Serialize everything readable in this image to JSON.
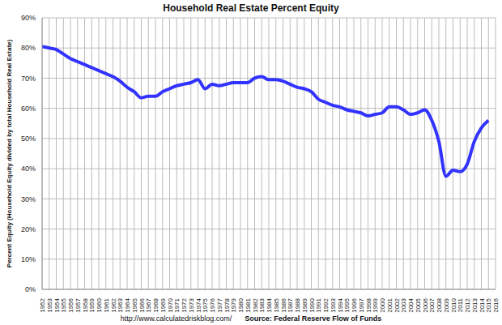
{
  "chart_data": {
    "type": "line",
    "title": "Household Real Estate Percent Equity",
    "y_label": "Percent Equity (Household Equity divided by total Household Real Estate)",
    "annotations": [
      "http://www.calculatedriskblog.com/",
      "Source: Federal Reserve Flow of Funds"
    ],
    "x": [
      1952,
      1953,
      1954,
      1955,
      1956,
      1957,
      1958,
      1959,
      1960,
      1961,
      1962,
      1963,
      1964,
      1965,
      1966,
      1967,
      1968,
      1969,
      1970,
      1971,
      1972,
      1973,
      1974,
      1975,
      1976,
      1977,
      1978,
      1979,
      1980,
      1981,
      1982,
      1983,
      1984,
      1985,
      1986,
      1987,
      1988,
      1989,
      1990,
      1991,
      1992,
      1993,
      1994,
      1995,
      1996,
      1997,
      1998,
      1999,
      2000,
      2001,
      2002,
      2003,
      2004,
      2005,
      2006,
      2007,
      2008,
      2009,
      2010,
      2011,
      2012,
      2013,
      2014,
      2015
    ],
    "series": [
      {
        "name": "Household Real Estate Percent Equity",
        "color": "#3333ff",
        "marker": "none",
        "line_style": "solid",
        "values": [
          80.5,
          80,
          79.5,
          78,
          76.5,
          75.5,
          74.5,
          73.5,
          72.5,
          71.5,
          70.5,
          69,
          67,
          65.5,
          63.5,
          64,
          64,
          65.5,
          66.5,
          67.5,
          68,
          68.5,
          69.5,
          66.5,
          68,
          67.5,
          68,
          68.5,
          68.5,
          68.5,
          70,
          70.5,
          69.5,
          69.5,
          69,
          68,
          67,
          66.5,
          65.5,
          63,
          62,
          61,
          60.5,
          59.5,
          59,
          58.5,
          57.5,
          58,
          58.5,
          60.5,
          60.5,
          59.5,
          58,
          58.5,
          59.5,
          56,
          49,
          37.5,
          39.5,
          39,
          41.5,
          49,
          53.5,
          56
        ]
      }
    ],
    "xlim": [
      1952,
      2016
    ],
    "xticks": [
      1952,
      1953,
      1954,
      1955,
      1956,
      1957,
      1958,
      1959,
      1960,
      1961,
      1962,
      1963,
      1964,
      1965,
      1966,
      1967,
      1968,
      1969,
      1970,
      1971,
      1972,
      1973,
      1974,
      1975,
      1976,
      1977,
      1978,
      1979,
      1980,
      1981,
      1982,
      1983,
      1984,
      1985,
      1986,
      1987,
      1988,
      1989,
      1990,
      1991,
      1992,
      1993,
      1994,
      1995,
      1996,
      1997,
      1998,
      1999,
      2000,
      2001,
      2002,
      2003,
      2004,
      2005,
      2006,
      2007,
      2008,
      2009,
      2010,
      2011,
      2012,
      2013,
      2014,
      2015,
      2016
    ],
    "ylim": [
      0,
      90
    ],
    "yticks": [
      {
        "value": 0,
        "label": "0%"
      },
      {
        "value": 10,
        "label": "10%"
      },
      {
        "value": 20,
        "label": "20%"
      },
      {
        "value": 30,
        "label": "30%"
      },
      {
        "value": 40,
        "label": "40%"
      },
      {
        "value": 50,
        "label": "50%"
      },
      {
        "value": 60,
        "label": "60%"
      },
      {
        "value": 70,
        "label": "70%"
      },
      {
        "value": 80,
        "label": "80%"
      },
      {
        "value": 90,
        "label": "90%"
      }
    ],
    "grid": true
  }
}
